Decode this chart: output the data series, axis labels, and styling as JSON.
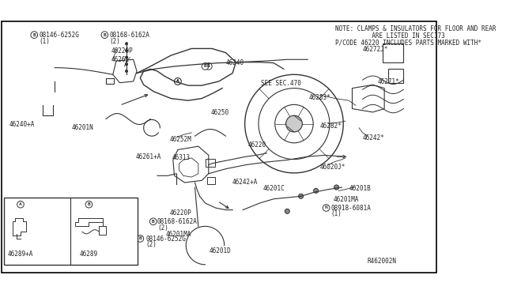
{
  "bg_color": "#ffffff",
  "border_color": "#000000",
  "fig_width": 6.4,
  "fig_height": 3.72,
  "note_lines": [
    "NOTE: CLAMPS & INSULATORS FOR FLOOR AND REAR",
    "          ARE LISTED IN SEC173",
    "P/CODE 46220 INCLUDES PARTS MARKED WITH✱"
  ],
  "ref_code": "R462002N",
  "see_sec": "SEE SEC.470",
  "text_color": "#222222",
  "line_color": "#333333"
}
